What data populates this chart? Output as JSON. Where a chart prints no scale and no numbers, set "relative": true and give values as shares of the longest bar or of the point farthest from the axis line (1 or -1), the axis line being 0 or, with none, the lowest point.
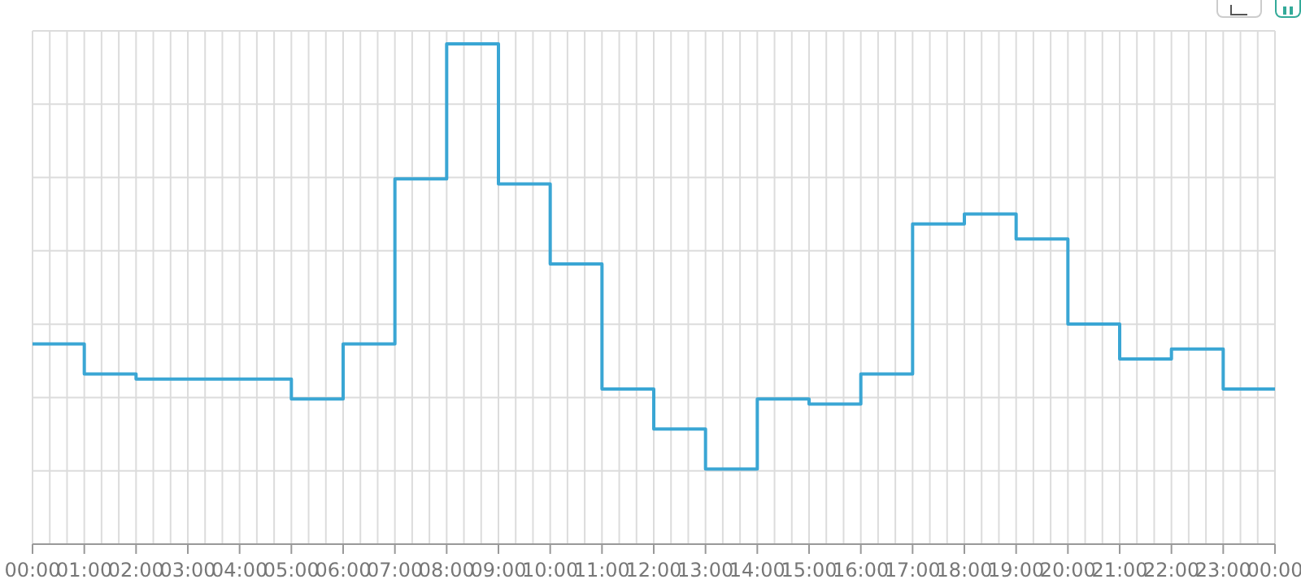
{
  "chart_data": {
    "type": "step",
    "relative": true,
    "grid": true,
    "color": "#3aa6d4",
    "x": [
      0,
      1,
      2,
      3,
      4,
      5,
      6,
      7,
      8,
      9,
      10,
      11,
      12,
      13,
      14,
      15,
      16,
      17,
      18,
      19,
      20,
      21,
      22,
      23,
      24
    ],
    "values": [
      0.4,
      0.34,
      0.33,
      0.33,
      0.33,
      0.29,
      0.4,
      0.73,
      1,
      0.72,
      0.56,
      0.31,
      0.23,
      0.15,
      0.29,
      0.28,
      0.34,
      0.64,
      0.66,
      0.61,
      0.44,
      0.37,
      0.39,
      0.31,
      0.31
    ],
    "xlim": [
      0,
      24
    ],
    "xticks": [
      {
        "value": 0,
        "label": "00:00"
      },
      {
        "value": 0.3333,
        "label": null
      },
      {
        "value": 0.6667,
        "label": null
      },
      {
        "value": 1,
        "label": "01:00"
      },
      {
        "value": 1.3333,
        "label": null
      },
      {
        "value": 1.6667,
        "label": null
      },
      {
        "value": 2,
        "label": "02:00"
      },
      {
        "value": 2.3333,
        "label": null
      },
      {
        "value": 2.6667,
        "label": null
      },
      {
        "value": 3,
        "label": "03:00"
      },
      {
        "value": 3.3333,
        "label": null
      },
      {
        "value": 3.6667,
        "label": null
      },
      {
        "value": 4,
        "label": "04:00"
      },
      {
        "value": 4.3333,
        "label": null
      },
      {
        "value": 4.6667,
        "label": null
      },
      {
        "value": 5,
        "label": "05:00"
      },
      {
        "value": 5.3333,
        "label": null
      },
      {
        "value": 5.6667,
        "label": null
      },
      {
        "value": 6,
        "label": "06:00"
      },
      {
        "value": 6.3333,
        "label": null
      },
      {
        "value": 6.6667,
        "label": null
      },
      {
        "value": 7,
        "label": "07:00"
      },
      {
        "value": 7.3333,
        "label": null
      },
      {
        "value": 7.6667,
        "label": null
      },
      {
        "value": 8,
        "label": "08:00"
      },
      {
        "value": 8.3333,
        "label": null
      },
      {
        "value": 8.6667,
        "label": null
      },
      {
        "value": 9,
        "label": "09:00"
      },
      {
        "value": 9.3333,
        "label": null
      },
      {
        "value": 9.6667,
        "label": null
      },
      {
        "value": 10,
        "label": "10:00"
      },
      {
        "value": 10.3333,
        "label": null
      },
      {
        "value": 10.6667,
        "label": null
      },
      {
        "value": 11,
        "label": "11:00"
      },
      {
        "value": 11.3333,
        "label": null
      },
      {
        "value": 11.6667,
        "label": null
      },
      {
        "value": 12,
        "label": "12:00"
      },
      {
        "value": 12.3333,
        "label": null
      },
      {
        "value": 12.6667,
        "label": null
      },
      {
        "value": 13,
        "label": "13:00"
      },
      {
        "value": 13.3333,
        "label": null
      },
      {
        "value": 13.6667,
        "label": null
      },
      {
        "value": 14,
        "label": "14:00"
      },
      {
        "value": 14.3333,
        "label": null
      },
      {
        "value": 14.6667,
        "label": null
      },
      {
        "value": 15,
        "label": "15:00"
      },
      {
        "value": 15.3333,
        "label": null
      },
      {
        "value": 15.6667,
        "label": null
      },
      {
        "value": 16,
        "label": "16:00"
      },
      {
        "value": 16.3333,
        "label": null
      },
      {
        "value": 16.6667,
        "label": null
      },
      {
        "value": 17,
        "label": "17:00"
      },
      {
        "value": 17.3333,
        "label": null
      },
      {
        "value": 17.6667,
        "label": null
      },
      {
        "value": 18,
        "label": "18:00"
      },
      {
        "value": 18.3333,
        "label": null
      },
      {
        "value": 18.6667,
        "label": null
      },
      {
        "value": 19,
        "label": "19:00"
      },
      {
        "value": 19.3333,
        "label": null
      },
      {
        "value": 19.6667,
        "label": null
      },
      {
        "value": 20,
        "label": "20:00"
      },
      {
        "value": 20.3333,
        "label": null
      },
      {
        "value": 20.6667,
        "label": null
      },
      {
        "value": 21,
        "label": "21:00"
      },
      {
        "value": 21.3333,
        "label": null
      },
      {
        "value": 21.6667,
        "label": null
      },
      {
        "value": 22,
        "label": "22:00"
      },
      {
        "value": 22.3333,
        "label": null
      },
      {
        "value": 22.6667,
        "label": null
      },
      {
        "value": 23,
        "label": "23:00"
      },
      {
        "value": 23.3333,
        "label": null
      },
      {
        "value": 23.6667,
        "label": null
      },
      {
        "value": 24,
        "label": "00:00"
      }
    ]
  }
}
